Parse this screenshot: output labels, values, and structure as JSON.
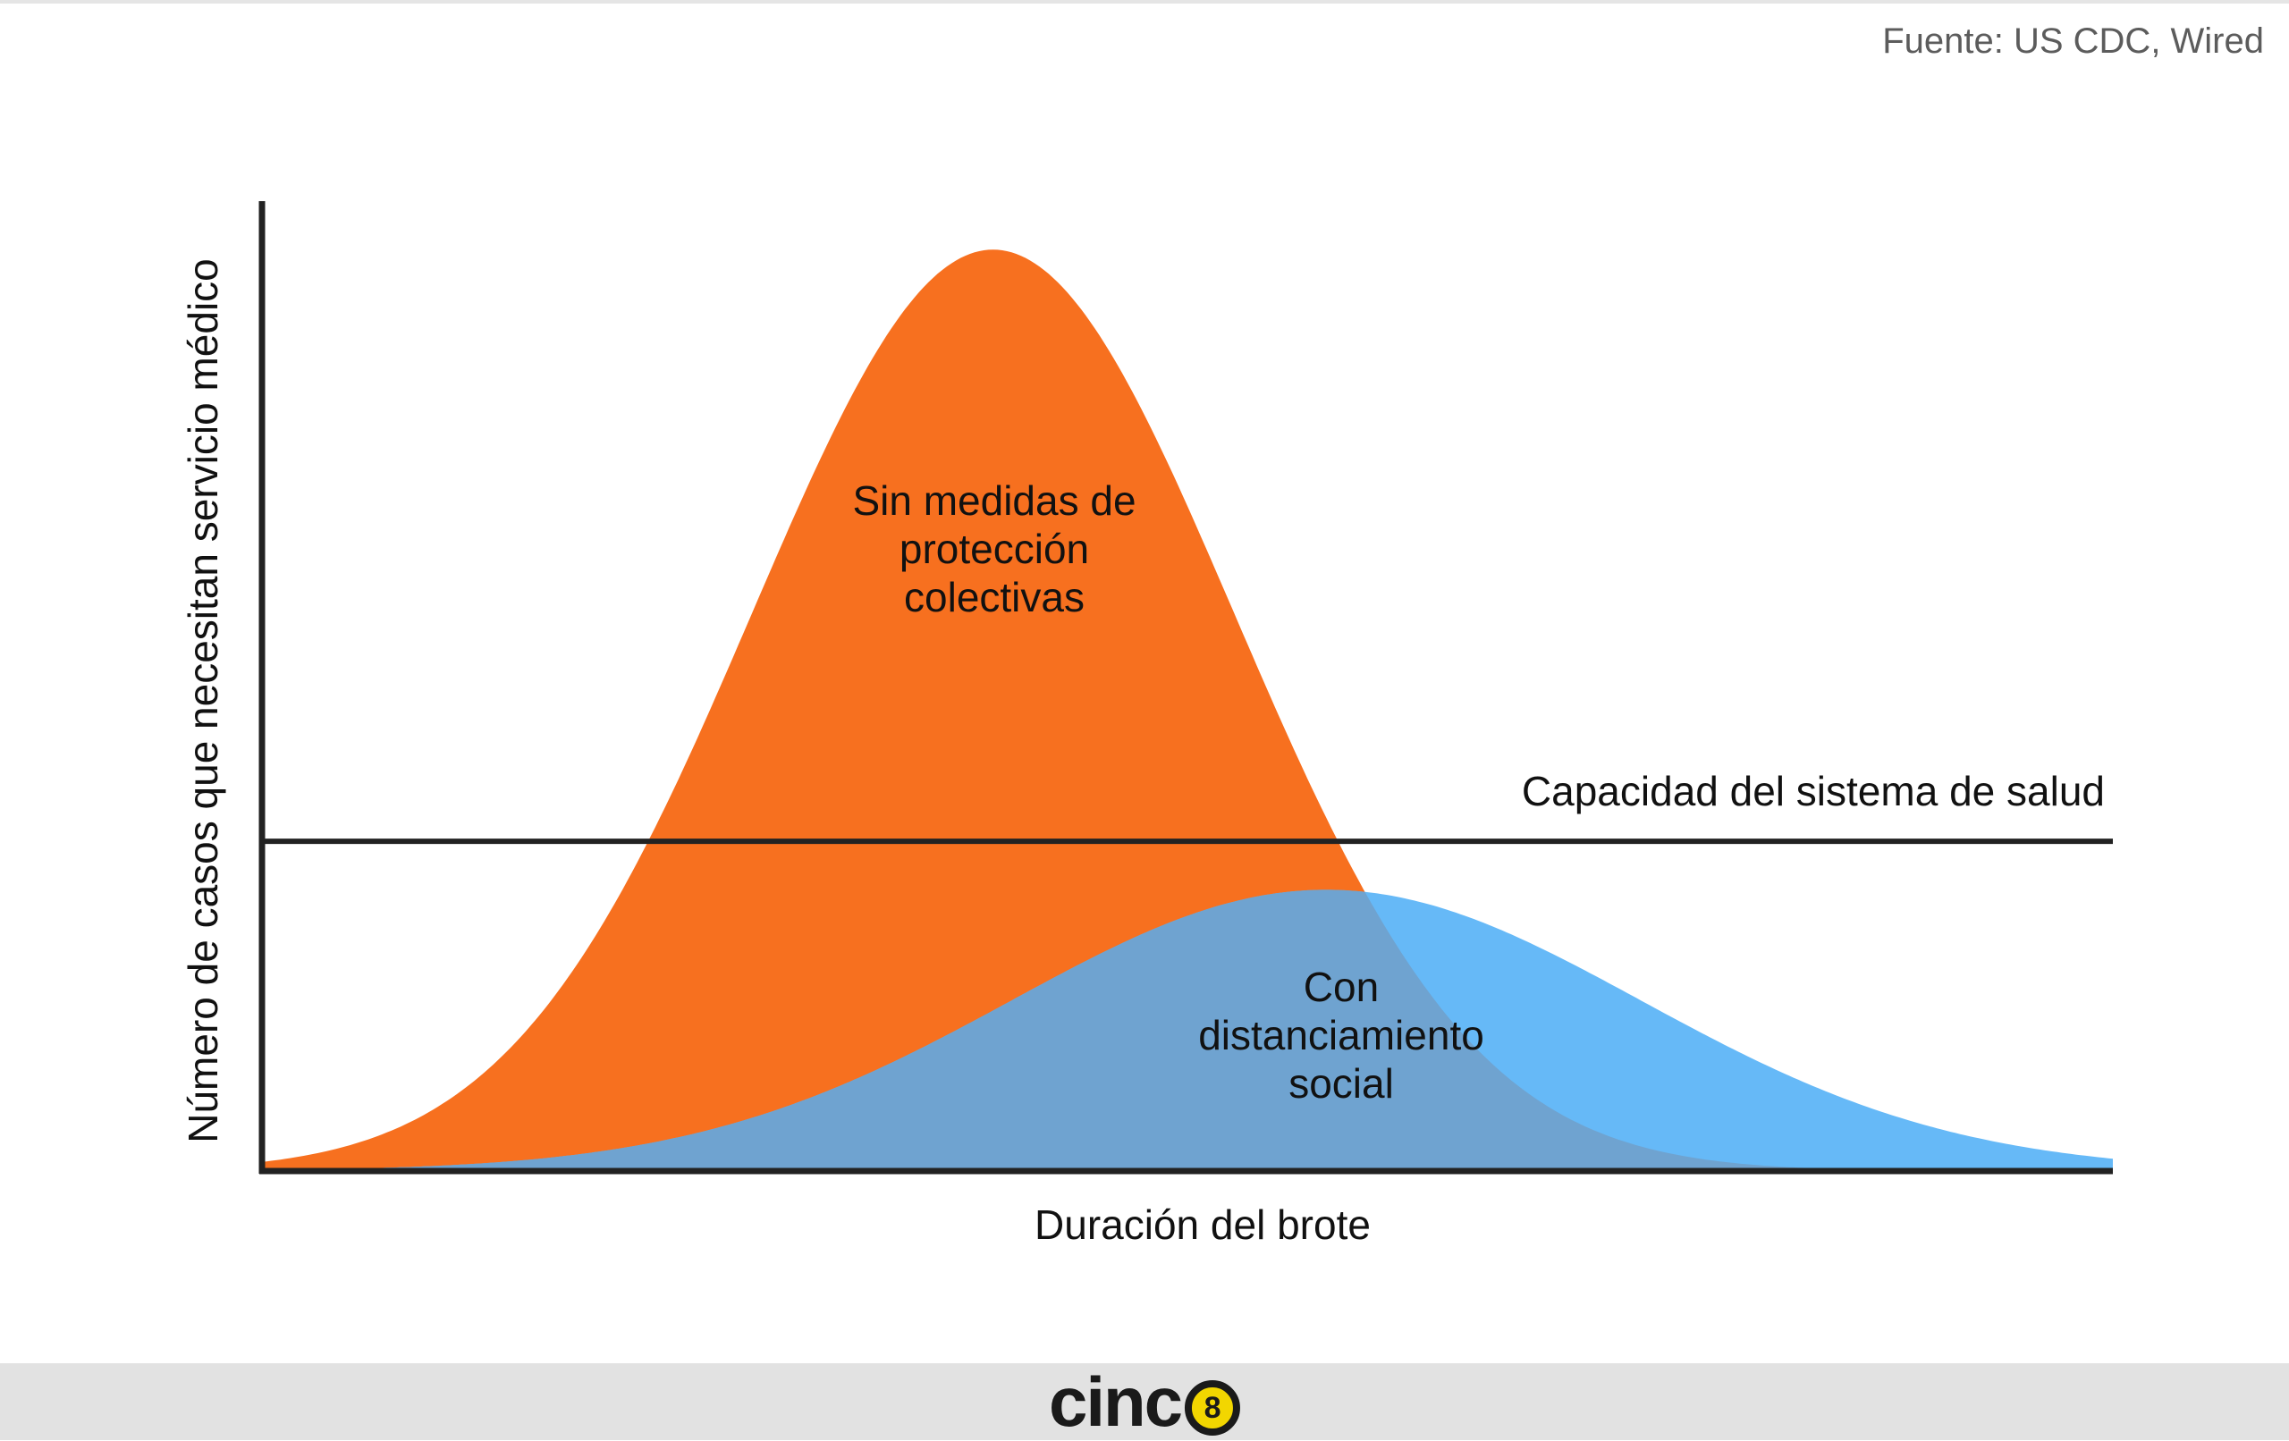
{
  "source": "Fuente: US CDC, Wired",
  "logo": {
    "text": "cinc",
    "mark": "8"
  },
  "colors": {
    "orange": "#f7701f",
    "blue": "#66b9f7",
    "overlap": "#6fa3d0",
    "line": "#222222"
  },
  "chart_data": {
    "type": "area",
    "xlabel": "Duración del brote",
    "ylabel": "Número de casos que necesitan servicio médico",
    "xlim": [
      0,
      100
    ],
    "ylim": [
      0,
      100
    ],
    "ticks": "none",
    "grid": false,
    "series": [
      {
        "name": "Sin medidas de protección colectivas",
        "color": "#f7701f",
        "peak": 95,
        "peak_at": 39.5,
        "spread": 13
      },
      {
        "name": "Con distanciamiento social",
        "color": "#66b9f7",
        "peak": 29,
        "peak_at": 57.5,
        "spread": 17
      }
    ],
    "reference_line": {
      "label": "Capacidad del sistema de salud",
      "value": 34
    }
  }
}
